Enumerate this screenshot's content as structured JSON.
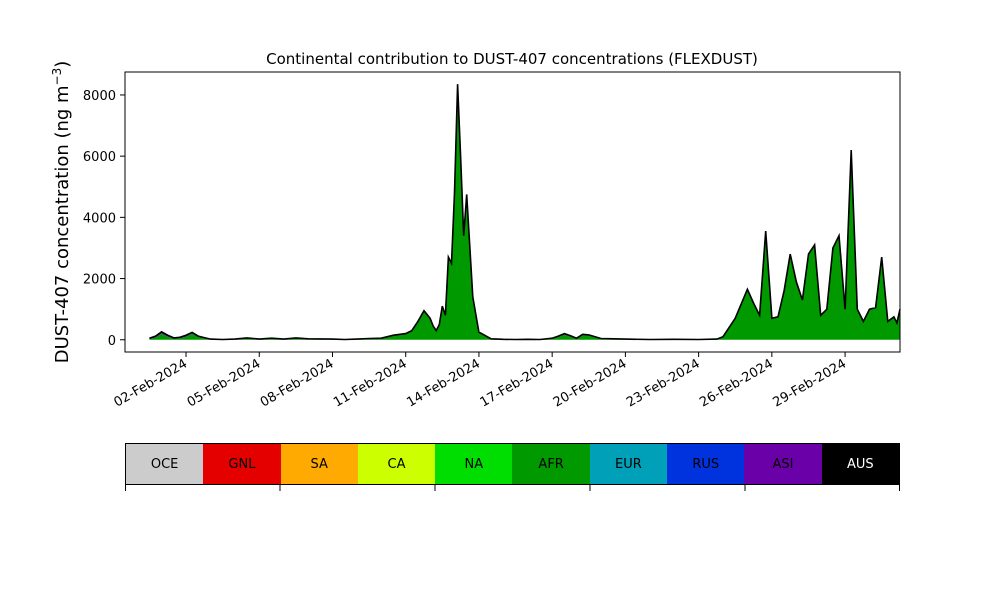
{
  "chart_data": {
    "type": "area",
    "title": "Continental contribution to DUST-407 concentrations (FLEXDUST)",
    "xlabel": "",
    "ylabel": "DUST-407 concentration (ng m",
    "ylabel_sup": "−3",
    "ylabel_close": ")",
    "ylim": [
      -400,
      8750
    ],
    "xlim": [
      "2024-01-30T12:00",
      "2024-03-02T06:00"
    ],
    "yticks": [
      0,
      2000,
      4000,
      6000,
      8000
    ],
    "ytick_labels": [
      "0",
      "2000",
      "4000",
      "6000",
      "8000"
    ],
    "xtick_dates": [
      "2024-02-02",
      "2024-02-05",
      "2024-02-08",
      "2024-02-11",
      "2024-02-14",
      "2024-02-17",
      "2024-02-20",
      "2024-02-23",
      "2024-02-26",
      "2024-02-29"
    ],
    "xtick_labels": [
      "02-Feb-2024",
      "05-Feb-2024",
      "08-Feb-2024",
      "11-Feb-2024",
      "14-Feb-2024",
      "17-Feb-2024",
      "20-Feb-2024",
      "23-Feb-2024",
      "26-Feb-2024",
      "29-Feb-2024"
    ],
    "grid": false,
    "legend_placement": "bottom",
    "total": {
      "name": "AUS",
      "x": [
        "2024-01-31T12:00",
        "2024-01-31T18:00",
        "2024-02-01T00:00",
        "2024-02-01T06:00",
        "2024-02-01T12:00",
        "2024-02-01T18:00",
        "2024-02-02T00:00",
        "2024-02-02T06:00",
        "2024-02-02T12:00",
        "2024-02-03T00:00",
        "2024-02-03T12:00",
        "2024-02-04T00:00",
        "2024-02-04T12:00",
        "2024-02-05T00:00",
        "2024-02-05T12:00",
        "2024-02-06T00:00",
        "2024-02-06T12:00",
        "2024-02-07T00:00",
        "2024-02-08T00:00",
        "2024-02-08T12:00",
        "2024-02-09T00:00",
        "2024-02-09T12:00",
        "2024-02-10T00:00",
        "2024-02-10T12:00",
        "2024-02-11T00:00",
        "2024-02-11T06:00",
        "2024-02-11T12:00",
        "2024-02-11T18:00",
        "2024-02-12T00:00",
        "2024-02-12T03:00",
        "2024-02-12T06:00",
        "2024-02-12T09:00",
        "2024-02-12T12:00",
        "2024-02-12T15:00",
        "2024-02-12T18:00",
        "2024-02-12T21:00",
        "2024-02-13T00:00",
        "2024-02-13T03:00",
        "2024-02-13T06:00",
        "2024-02-13T09:00",
        "2024-02-13T12:00",
        "2024-02-13T18:00",
        "2024-02-14T00:00",
        "2024-02-14T12:00",
        "2024-02-15T00:00",
        "2024-02-15T12:00",
        "2024-02-16T00:00",
        "2024-02-16T12:00",
        "2024-02-17T00:00",
        "2024-02-17T06:00",
        "2024-02-17T12:00",
        "2024-02-17T18:00",
        "2024-02-18T00:00",
        "2024-02-18T06:00",
        "2024-02-18T12:00",
        "2024-02-19T00:00",
        "2024-02-19T12:00",
        "2024-02-20T00:00",
        "2024-02-21T00:00",
        "2024-02-22T00:00",
        "2024-02-23T00:00",
        "2024-02-23T18:00",
        "2024-02-24T00:00",
        "2024-02-24T12:00",
        "2024-02-25T00:00",
        "2024-02-25T06:00",
        "2024-02-25T12:00",
        "2024-02-25T18:00",
        "2024-02-26T00:00",
        "2024-02-26T06:00",
        "2024-02-26T12:00",
        "2024-02-26T18:00",
        "2024-02-27T00:00",
        "2024-02-27T06:00",
        "2024-02-27T12:00",
        "2024-02-27T18:00",
        "2024-02-28T00:00",
        "2024-02-28T06:00",
        "2024-02-28T12:00",
        "2024-02-28T18:00",
        "2024-02-29T00:00",
        "2024-02-29T06:00",
        "2024-02-29T12:00",
        "2024-02-29T18:00",
        "2024-03-01T00:00",
        "2024-03-01T06:00",
        "2024-03-01T12:00",
        "2024-03-01T18:00",
        "2024-03-02T00:00",
        "2024-03-02T03:00",
        "2024-03-02T06:00"
      ],
      "values": [
        50,
        120,
        260,
        150,
        60,
        80,
        150,
        240,
        120,
        20,
        10,
        20,
        60,
        20,
        50,
        20,
        60,
        30,
        20,
        10,
        20,
        40,
        50,
        150,
        200,
        300,
        600,
        950,
        700,
        450,
        300,
        500,
        1100,
        800,
        2700,
        2500,
        4800,
        8350,
        6000,
        3400,
        4750,
        1400,
        250,
        30,
        15,
        10,
        15,
        10,
        50,
        120,
        200,
        130,
        50,
        180,
        160,
        40,
        30,
        20,
        10,
        15,
        10,
        20,
        100,
        700,
        1650,
        1200,
        800,
        3550,
        700,
        750,
        1600,
        2800,
        1900,
        1300,
        2800,
        3100,
        800,
        1000,
        3000,
        3400,
        1000,
        6200,
        1000,
        600,
        1000,
        1050,
        2700,
        600,
        750,
        550,
        1000
      ]
    },
    "series": [
      {
        "name": "AFR",
        "values": [
          30,
          70,
          200,
          100,
          40,
          50,
          100,
          200,
          90,
          10,
          5,
          10,
          40,
          10,
          30,
          10,
          40,
          20,
          10,
          5,
          10,
          30,
          40,
          130,
          180,
          280,
          580,
          930,
          680,
          430,
          280,
          480,
          1080,
          780,
          2680,
          2480,
          4780,
          8330,
          5980,
          3380,
          4730,
          1380,
          230,
          20,
          10,
          5,
          10,
          5,
          30,
          90,
          170,
          100,
          30,
          150,
          130,
          30,
          20,
          10,
          5,
          10,
          5,
          15,
          90,
          690,
          1640,
          1190,
          790,
          3540,
          690,
          740,
          1590,
          2790,
          1890,
          1290,
          2790,
          3090,
          790,
          990,
          2990,
          3390,
          990,
          6190,
          990,
          590,
          990,
          1040,
          2690,
          590,
          740,
          540,
          990
        ]
      },
      {
        "name": "ASI",
        "values": [
          20,
          50,
          60,
          50,
          20,
          30,
          50,
          40,
          30,
          10,
          5,
          10,
          20,
          10,
          20,
          10,
          20,
          10,
          10,
          5,
          10,
          10,
          10,
          20,
          20,
          20,
          20,
          20,
          20,
          20,
          20,
          20,
          20,
          20,
          20,
          20,
          20,
          20,
          20,
          20,
          20,
          20,
          20,
          10,
          5,
          5,
          5,
          5,
          20,
          30,
          30,
          30,
          20,
          30,
          30,
          10,
          10,
          10,
          5,
          5,
          5,
          5,
          10,
          10,
          10,
          10,
          10,
          10,
          10,
          10,
          10,
          10,
          10,
          10,
          10,
          10,
          10,
          10,
          10,
          10,
          10,
          10,
          10,
          10,
          10,
          10,
          10,
          10,
          10,
          10,
          10
        ]
      }
    ],
    "legend": [
      {
        "name": "OCE",
        "color": "#cccccc"
      },
      {
        "name": "GNL",
        "color": "#e50000"
      },
      {
        "name": "SA",
        "color": "#ffaa00"
      },
      {
        "name": "CA",
        "color": "#ccff00"
      },
      {
        "name": "NA",
        "color": "#00dd00"
      },
      {
        "name": "AFR",
        "color": "#009900"
      },
      {
        "name": "EUR",
        "color": "#00a0b8"
      },
      {
        "name": "RUS",
        "color": "#0033dd"
      },
      {
        "name": "ASI",
        "color": "#6a00a8"
      },
      {
        "name": "AUS",
        "color": "#000000"
      }
    ]
  }
}
